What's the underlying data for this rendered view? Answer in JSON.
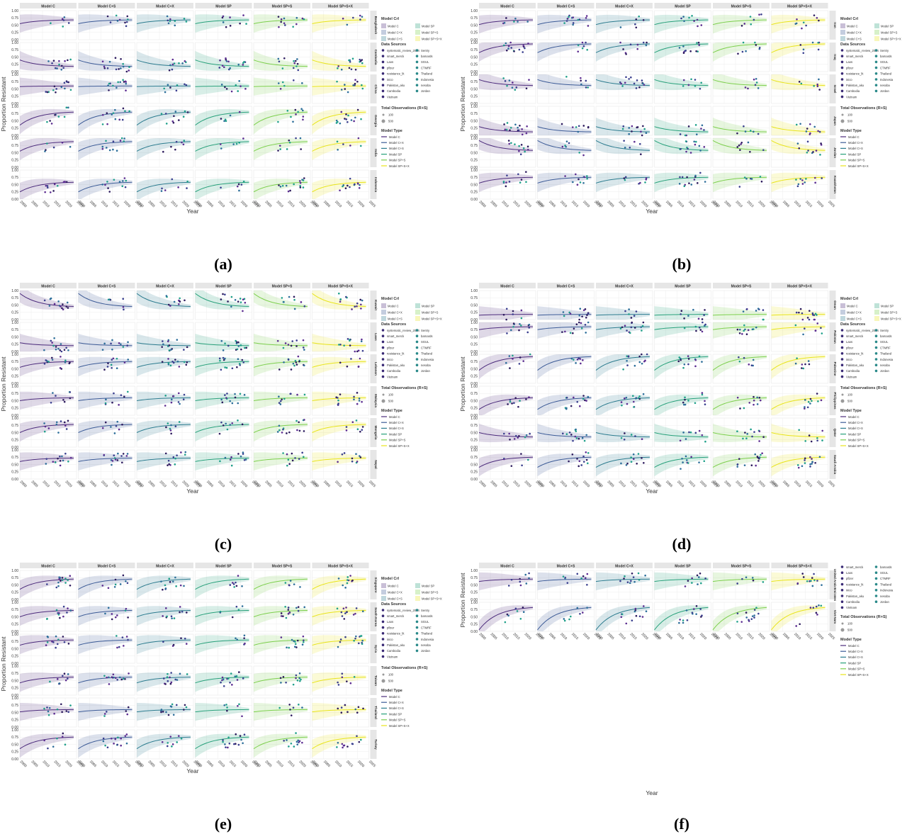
{
  "figure_labels": [
    "(a)",
    "(b)",
    "(c)",
    "(d)",
    "(e)",
    "(f)"
  ],
  "common": {
    "models": [
      "Model C",
      "Model C+S",
      "Model C+X",
      "Model SP",
      "Model SP+S",
      "Model SP+S+X"
    ],
    "model_colors": [
      "#4b2a7b",
      "#3b5a96",
      "#2b7b8e",
      "#27a07a",
      "#7ccf4c",
      "#e8e41a"
    ],
    "ylabel": "Proportion Resistant",
    "xlabel": "Year",
    "x_ticks": [
      2000,
      2005,
      2010,
      2015,
      2020,
      2025
    ],
    "y_ticks": [
      "0.00",
      "0.25",
      "0.50",
      "0.75",
      "1.00"
    ],
    "legend_ci_title": "Model CrI",
    "legend_ci_items": [
      "Model C",
      "Model C+X",
      "Model C+S",
      "Model SP",
      "Model SP+S",
      "Model SP+S+X"
    ],
    "legend_sources_title": "Data Sources",
    "legend_sources_items": [
      "systematic_review_2024",
      "smart_merck",
      "Laos",
      "pfizer",
      "resistance_lit",
      "inico",
      "Pakistan_aku",
      "Cambodia",
      "Vietnam",
      "Sentry",
      "barnards",
      "SGUL",
      "CTMRF",
      "Thailand",
      "Indonesia",
      "nesoba",
      "Jordan"
    ],
    "legend_sources_items_f": [
      "smart_merck",
      "Laos",
      "pfizer",
      "resistance_lit",
      "inico",
      "Pakistan_aku",
      "Cambodia",
      "Vietnam",
      "barnards",
      "SGUL",
      "CTMRF",
      "Thailand",
      "Indonesia",
      "nesoba",
      "Jordan"
    ],
    "legend_obs_title": "Total Observations (R+S)",
    "legend_obs_items": [
      "100",
      "500"
    ],
    "legend_type_title": "Model Type",
    "legend_type_items": [
      "Model C",
      "Model C+X",
      "Model C+S",
      "Model SP",
      "Model SP+S",
      "Model SP+S+X"
    ]
  },
  "chart_data": [
    {
      "type": "line",
      "panel": "(a)",
      "facets_rows": [
        "Bangladesh",
        "Cambodia",
        "China",
        "Georgia",
        "India",
        "Indonesia"
      ],
      "rows": [
        [
          0.55,
          0.68
        ],
        [
          0.4,
          0.18
        ],
        [
          0.58,
          0.6
        ],
        [
          0.35,
          0.8
        ],
        [
          0.55,
          0.88
        ],
        [
          0.25,
          0.58
        ]
      ]
    },
    {
      "type": "line",
      "panel": "(b)",
      "facets_rows": [
        "Iran",
        "Iraq",
        "Israel",
        "Japan",
        "Jordan",
        "Kazakhstan"
      ],
      "rows": [
        [
          0.52,
          0.68
        ],
        [
          0.65,
          0.95
        ],
        [
          0.82,
          0.62
        ],
        [
          0.3,
          0.12
        ],
        [
          0.92,
          0.58
        ],
        [
          0.55,
          0.75
        ]
      ]
    },
    {
      "type": "line",
      "panel": "(c)",
      "facets_rows": [
        "Kuwait",
        "Laos",
        "Lebanon",
        "Malaysia",
        "Mongolia",
        "Nepal"
      ],
      "rows": [
        [
          0.9,
          0.45
        ],
        [
          0.3,
          0.2
        ],
        [
          0.55,
          0.75
        ],
        [
          0.5,
          0.6
        ],
        [
          0.5,
          0.78
        ],
        [
          0.6,
          0.72
        ]
      ]
    },
    {
      "type": "line",
      "panel": "(d)",
      "facets_rows": [
        "Oman",
        "Pakistan",
        "Palestine",
        "Philippines",
        "Qatar",
        "Saudi Arabia"
      ],
      "rows": [
        [
          0.15,
          0.18
        ],
        [
          0.75,
          0.85
        ],
        [
          0.45,
          0.92
        ],
        [
          0.2,
          0.6
        ],
        [
          0.5,
          0.35
        ],
        [
          0.4,
          0.75
        ]
      ]
    },
    {
      "type": "line",
      "panel": "(e)",
      "facets_rows": [
        "Singapore",
        "South Korea",
        "Syria",
        "Taiwan",
        "Thailand",
        "Turkey"
      ],
      "rows": [
        [
          0.35,
          0.7
        ],
        [
          0.5,
          0.72
        ],
        [
          0.62,
          0.8
        ],
        [
          0.42,
          0.62
        ],
        [
          0.52,
          0.6
        ],
        [
          0.35,
          0.75
        ]
      ]
    },
    {
      "type": "line",
      "panel": "(f)",
      "facets_rows": [
        "United Arab Emirates",
        "Viet Nam"
      ],
      "rows": [
        [
          0.62,
          0.7
        ],
        [
          0.05,
          0.82
        ]
      ]
    }
  ]
}
